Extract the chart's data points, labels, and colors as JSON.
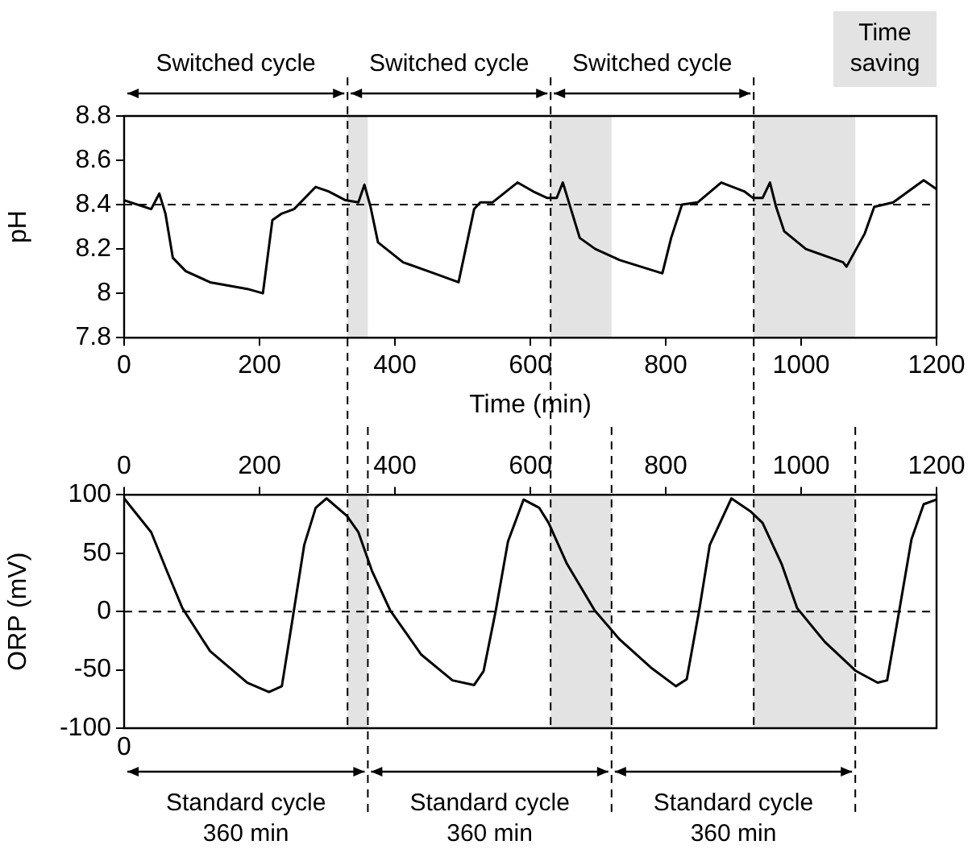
{
  "chart_data": [
    {
      "type": "line",
      "ylabel": "pH",
      "xlabel": "Time (min)",
      "xlim": [
        0,
        1200
      ],
      "xticks": [
        0,
        200,
        400,
        600,
        800,
        1000,
        1200
      ],
      "ylim": [
        7.8,
        8.8
      ],
      "yticks": [
        7.8,
        8,
        8.2,
        8.4,
        8.6,
        8.8
      ],
      "marker": "none",
      "line_style": "solid",
      "series": [
        {
          "color": "#000000",
          "x": [
            0,
            40,
            52,
            61,
            72,
            91,
            127,
            182,
            205,
            219,
            233,
            251,
            283,
            302,
            327,
            346,
            355,
            364,
            375,
            412,
            458,
            494,
            517,
            526,
            544,
            581,
            604,
            625,
            639,
            648,
            657,
            673,
            696,
            732,
            795,
            808,
            824,
            847,
            882,
            916,
            929,
            943,
            954,
            963,
            975,
            1007,
            1062,
            1067,
            1094,
            1108,
            1136,
            1181,
            1200
          ],
          "values": [
            8.42,
            8.38,
            8.45,
            8.36,
            8.16,
            8.1,
            8.05,
            8.02,
            8.0,
            8.33,
            8.36,
            8.38,
            8.48,
            8.46,
            8.42,
            8.41,
            8.49,
            8.39,
            8.23,
            8.14,
            8.09,
            8.05,
            8.38,
            8.41,
            8.41,
            8.5,
            8.46,
            8.43,
            8.43,
            8.5,
            8.41,
            8.25,
            8.2,
            8.15,
            8.09,
            8.25,
            8.4,
            8.41,
            8.5,
            8.46,
            8.43,
            8.43,
            8.5,
            8.39,
            8.28,
            8.2,
            8.14,
            8.12,
            8.27,
            8.39,
            8.41,
            8.51,
            8.47
          ]
        }
      ],
      "ref_lines": [
        {
          "axis": "y",
          "value": 8.4,
          "line_style": "dashed",
          "color": "#000000"
        },
        {
          "axis": "x",
          "value": 330,
          "line_style": "dashed",
          "color": "#000000"
        },
        {
          "axis": "x",
          "value": 630,
          "line_style": "dashed",
          "color": "#000000"
        },
        {
          "axis": "x",
          "value": 930,
          "line_style": "dashed",
          "color": "#000000"
        }
      ],
      "bands": [
        {
          "axis": "x",
          "from": 330,
          "to": 360,
          "color": "#e3e3e3"
        },
        {
          "axis": "x",
          "from": 630,
          "to": 720,
          "color": "#e3e3e3"
        },
        {
          "axis": "x",
          "from": 930,
          "to": 1080,
          "color": "#e3e3e3"
        }
      ],
      "annotations": [
        "Switched cycle",
        "Switched cycle",
        "Switched cycle",
        "Time saving"
      ]
    },
    {
      "type": "line",
      "ylabel": "ORP (mV)",
      "xlim": [
        0,
        1200
      ],
      "x2lim": [
        0,
        1200
      ],
      "x2ticks": [
        0,
        200,
        400,
        600,
        800,
        1000,
        1200
      ],
      "ylim": [
        -100,
        100
      ],
      "yticks": [
        -100,
        -50,
        0,
        50,
        100
      ],
      "marker": "none",
      "line_style": "solid",
      "series": [
        {
          "color": "#000000",
          "x": [
            0,
            40,
            63,
            86,
            127,
            182,
            214,
            233,
            247,
            266,
            283,
            299,
            329,
            346,
            366,
            393,
            439,
            485,
            517,
            531,
            549,
            567,
            590,
            613,
            627,
            654,
            695,
            732,
            778,
            815,
            831,
            850,
            865,
            897,
            925,
            943,
            971,
            994,
            1035,
            1081,
            1113,
            1127,
            1145,
            1163,
            1181,
            1200
          ],
          "values": [
            97,
            68,
            35,
            3,
            -34,
            -61,
            -69,
            -64,
            -13,
            57,
            89,
            97,
            82,
            68,
            35,
            1,
            -37,
            -59,
            -63,
            -51,
            1,
            60,
            96,
            89,
            76,
            41,
            1,
            -24,
            -48,
            -64,
            -58,
            3,
            57,
            97,
            86,
            76,
            41,
            3,
            -26,
            -51,
            -61,
            -59,
            1,
            62,
            92,
            96
          ]
        }
      ],
      "ref_lines": [
        {
          "axis": "y",
          "value": 0,
          "line_style": "dashed",
          "color": "#000000"
        },
        {
          "axis": "x",
          "value": 330,
          "line_style": "dashed",
          "color": "#000000"
        },
        {
          "axis": "x",
          "value": 360,
          "line_style": "dashed",
          "color": "#000000"
        },
        {
          "axis": "x",
          "value": 630,
          "line_style": "dashed",
          "color": "#000000"
        },
        {
          "axis": "x",
          "value": 720,
          "line_style": "dashed",
          "color": "#000000"
        },
        {
          "axis": "x",
          "value": 930,
          "line_style": "dashed",
          "color": "#000000"
        },
        {
          "axis": "x",
          "value": 1080,
          "line_style": "dashed",
          "color": "#000000"
        }
      ],
      "bands": [
        {
          "axis": "x",
          "from": 330,
          "to": 360,
          "color": "#e3e3e3"
        },
        {
          "axis": "x",
          "from": 630,
          "to": 720,
          "color": "#e3e3e3"
        },
        {
          "axis": "x",
          "from": 930,
          "to": 1080,
          "color": "#e3e3e3"
        }
      ],
      "annotations": [
        "Standard cycle\n360 min",
        "Standard cycle\n360 min",
        "Standard cycle\n360 min",
        "0"
      ]
    }
  ]
}
